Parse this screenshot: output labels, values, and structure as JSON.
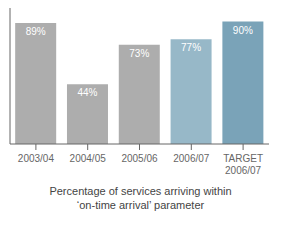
{
  "chart_data": {
    "type": "bar",
    "title": "Percentage of services arriving within\n‘on-time arrival’ parameter",
    "categories": [
      "2003/04",
      "2004/05",
      "2005/06",
      "2006/07",
      "TARGET\n2006/07"
    ],
    "values": [
      89,
      44,
      73,
      77,
      90
    ],
    "value_labels": [
      "89%",
      "44%",
      "73%",
      "77%",
      "90%"
    ],
    "colors": [
      "#adadad",
      "#adadad",
      "#adadad",
      "#97b8c8",
      "#7aa3b8"
    ],
    "ylim": [
      0,
      100
    ],
    "data_labels": true,
    "tick_labels": "x",
    "grid": false
  }
}
